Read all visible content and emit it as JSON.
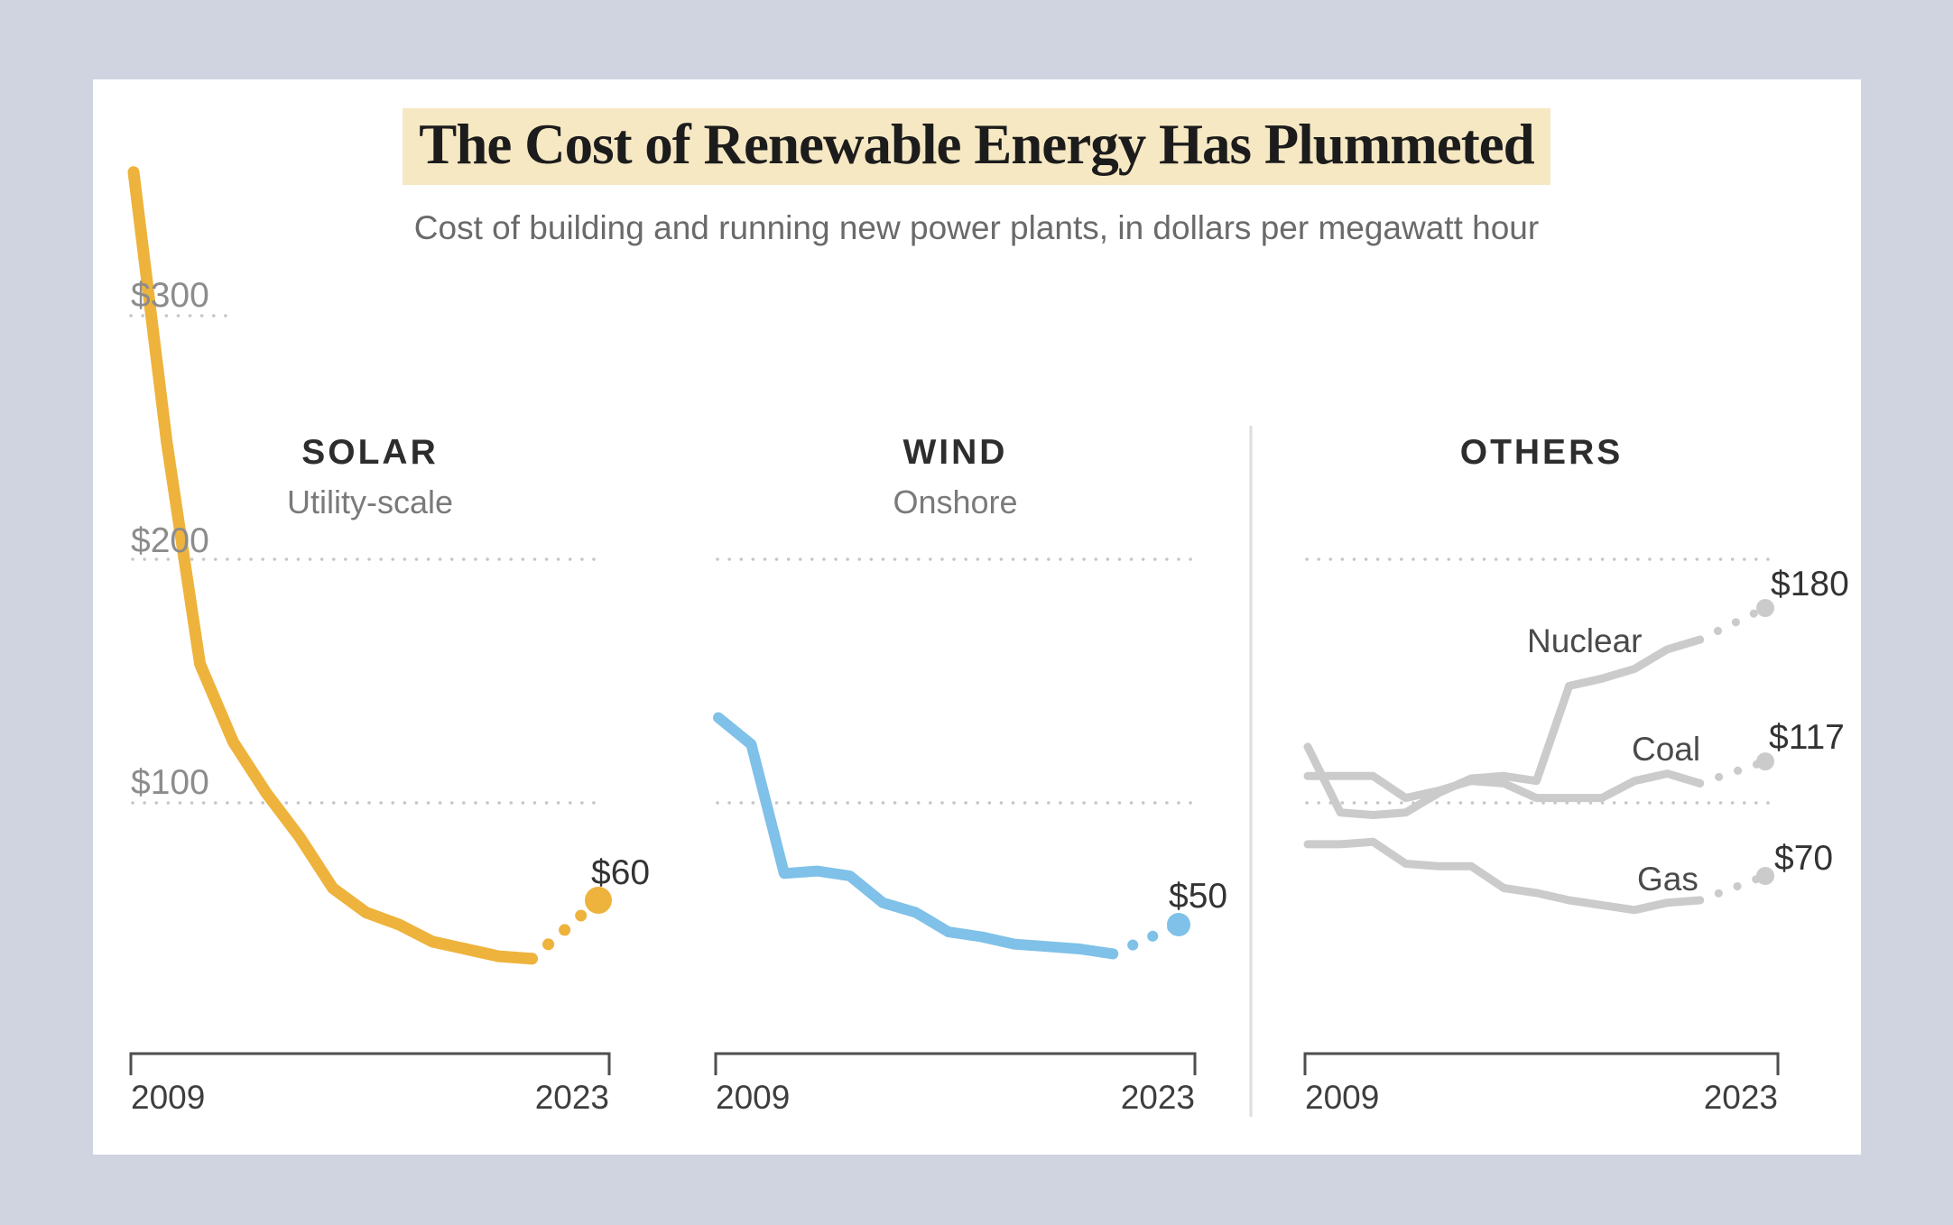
{
  "header": {
    "title": "The Cost of Renewable Energy Has Plummeted",
    "subtitle": "Cost of building and running new power plants, in dollars per megawatt hour"
  },
  "y_axis": {
    "labels": [
      "$300",
      "$200",
      "$100"
    ],
    "values": [
      300,
      200,
      100
    ]
  },
  "x_axis": {
    "start_label": "2009",
    "end_label": "2023"
  },
  "colors": {
    "background": "#d0d4e0",
    "card": "#ffffff",
    "title_highlight": "#f6e8c3",
    "solar": "#eeb33c",
    "wind": "#7fc1e8",
    "others": "#cbcbcb",
    "gridline": "#c6c6c6",
    "axis": "#4e4e4e",
    "divider": "#dedede"
  },
  "chart_data": {
    "type": "line",
    "title": "The Cost of Renewable Energy Has Plummeted",
    "unit": "dollars per megawatt hour",
    "x_range": [
      2009,
      2023
    ],
    "ylim": [
      0,
      380
    ],
    "gridlines": [
      100,
      200,
      300
    ],
    "grid_style": "dotted",
    "legend_position": "inline-labels",
    "years": [
      2009,
      2010,
      2011,
      2012,
      2013,
      2014,
      2015,
      2016,
      2017,
      2018,
      2019,
      2020,
      2021,
      2023
    ],
    "dashed_from_year": 2021,
    "panels": [
      {
        "title": "SOLAR",
        "subtitle": "Utility-scale",
        "series": [
          {
            "name": "Solar utility-scale",
            "color": "#eeb33c",
            "values": [
              359,
              248,
              157,
              125,
              104,
              86,
              65,
              55,
              50,
              43,
              40,
              37,
              36,
              60
            ],
            "end_label": "$60",
            "end_value": 60
          }
        ]
      },
      {
        "title": "WIND",
        "subtitle": "Onshore",
        "series": [
          {
            "name": "Wind onshore",
            "color": "#7fc1e8",
            "values": [
              135,
              124,
              71,
              72,
              70,
              59,
              55,
              47,
              45,
              42,
              41,
              40,
              38,
              50
            ],
            "end_label": "$50",
            "end_value": 50
          }
        ]
      },
      {
        "title": "OTHERS",
        "subtitle": "",
        "series": [
          {
            "name": "Nuclear",
            "color": "#cbcbcb",
            "values": [
              123,
              96,
              95,
              96,
              104,
              110,
              111,
              109,
              148,
              151,
              155,
              163,
              167,
              180
            ],
            "end_label": "$180",
            "end_value": 180
          },
          {
            "name": "Coal",
            "color": "#cbcbcb",
            "values": [
              111,
              111,
              111,
              102,
              105,
              109,
              108,
              102,
              102,
              102,
              109,
              112,
              108,
              117
            ],
            "end_label": "$117",
            "end_value": 117
          },
          {
            "name": "Gas",
            "color": "#cbcbcb",
            "values": [
              83,
              83,
              84,
              75,
              74,
              74,
              65,
              63,
              60,
              58,
              56,
              59,
              60,
              70
            ],
            "end_label": "$70",
            "end_value": 70
          }
        ]
      }
    ]
  }
}
